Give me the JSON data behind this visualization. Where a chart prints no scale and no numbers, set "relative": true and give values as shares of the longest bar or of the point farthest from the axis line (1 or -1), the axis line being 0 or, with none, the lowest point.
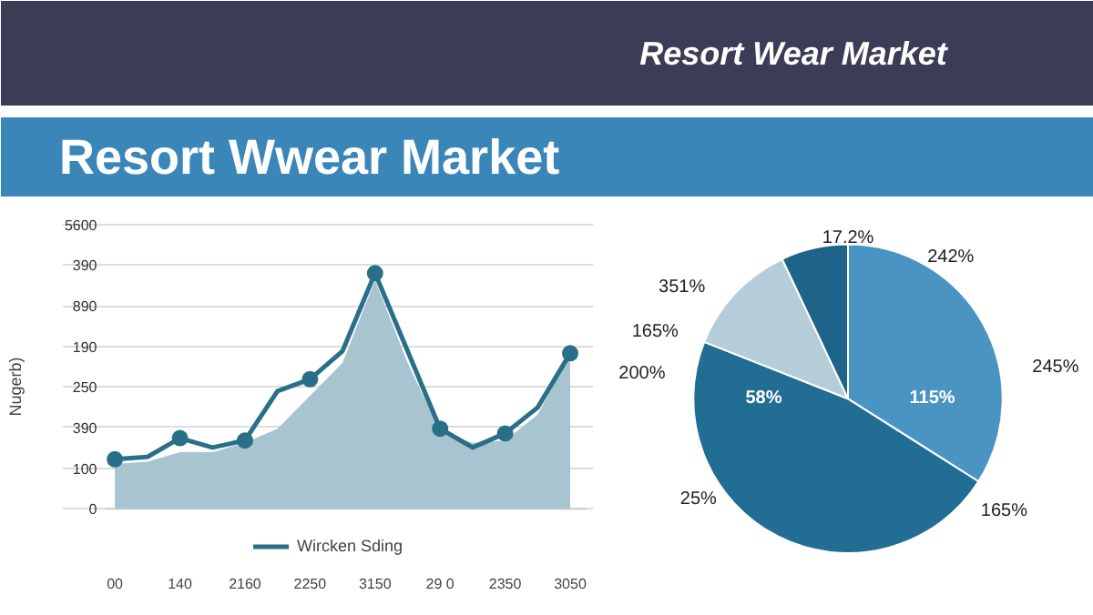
{
  "chart_data": [
    {
      "type": "line",
      "subtitle": "Resort Wwear Market",
      "ylabel": "Nugerb)",
      "relative": true,
      "categories": [
        "00",
        null,
        "140",
        null,
        "2160",
        null,
        "2250",
        null,
        "3150",
        null,
        "29 0",
        null,
        "2350",
        null,
        "3050"
      ],
      "annotations": [
        "0",
        "100",
        "390",
        "250",
        "190",
        "890",
        "390",
        "5600"
      ],
      "grid": "y",
      "legend": "bottom",
      "series": [
        {
          "type": "area",
          "color": "#a9c4d1",
          "values": [
            0.19,
            0.2,
            0.24,
            0.24,
            0.28,
            0.34,
            0.48,
            0.62,
            0.97,
            0.62,
            0.33,
            0.28,
            0.29,
            0.4,
            0.66
          ]
        },
        {
          "type": "line",
          "name": "Wircken Sding",
          "color": "#2a6f88",
          "marker": "none",
          "values": [
            0.21,
            0.22,
            0.3,
            0.26,
            0.29,
            0.5,
            0.55,
            0.67,
            1,
            0.67,
            0.34,
            0.26,
            0.32,
            0.43,
            0.66
          ]
        },
        {
          "type": "scatter",
          "color": "#2a6f88",
          "marker": "circle",
          "values": [
            0.21,
            null,
            0.3,
            null,
            0.29,
            null,
            0.55,
            null,
            1,
            null,
            0.34,
            null,
            0.32,
            null,
            0.66
          ]
        }
      ]
    },
    {
      "type": "pie",
      "title": "Resort Wear Market",
      "categories": [
        null,
        null,
        null,
        null
      ],
      "values": [
        34,
        47,
        12,
        7
      ],
      "colors": [
        "#4a94c4",
        "#226d94",
        "#b5cdd8",
        "#1e6389"
      ],
      "annotations": [
        "17.2%",
        "242%",
        "245%",
        "165%",
        "25%",
        "200%",
        "165%",
        "351%",
        "115%",
        "58%"
      ]
    }
  ]
}
